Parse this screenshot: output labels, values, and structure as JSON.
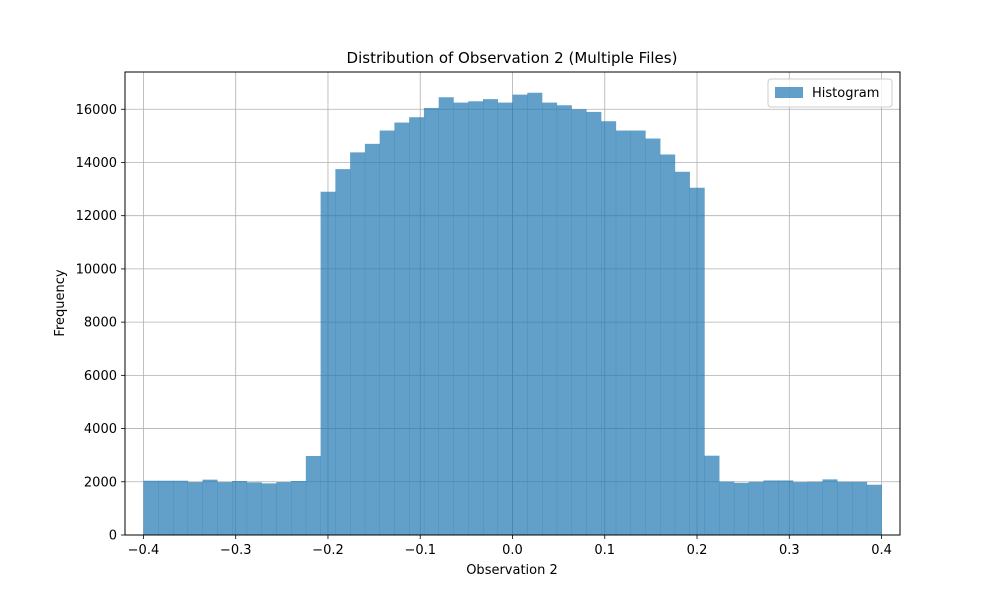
{
  "chart_data": {
    "type": "bar",
    "title": "Distribution of Observation 2 (Multiple Files)",
    "xlabel": "Observation 2",
    "ylabel": "Frequency",
    "xlim": [
      -0.42,
      0.42
    ],
    "ylim": [
      0,
      17400
    ],
    "xticks": [
      -0.4,
      -0.3,
      -0.2,
      -0.1,
      0.0,
      0.1,
      0.2,
      0.3,
      0.4
    ],
    "xtick_labels": [
      "−0.4",
      "−0.3",
      "−0.2",
      "−0.1",
      "0.0",
      "0.1",
      "0.2",
      "0.3",
      "0.4"
    ],
    "yticks": [
      0,
      2000,
      4000,
      6000,
      8000,
      10000,
      12000,
      14000,
      16000
    ],
    "ytick_labels": [
      "0",
      "2000",
      "4000",
      "6000",
      "8000",
      "10000",
      "12000",
      "14000",
      "16000"
    ],
    "grid": true,
    "legend": {
      "position": "top-right",
      "entries": [
        "Histogram"
      ]
    },
    "bar_color": "#1f77b4",
    "bar_opacity": 0.7,
    "bin_edges_start": -0.4,
    "bin_width": 0.016,
    "series": [
      {
        "name": "Histogram",
        "values": [
          2040,
          2040,
          2040,
          1990,
          2080,
          1990,
          2030,
          1980,
          1940,
          1990,
          2030,
          2970,
          12900,
          13750,
          14380,
          14700,
          15200,
          15500,
          15700,
          16050,
          16450,
          16250,
          16300,
          16380,
          16250,
          16550,
          16620,
          16250,
          16150,
          16000,
          15900,
          15550,
          15200,
          15200,
          14900,
          14300,
          13650,
          13050,
          2980,
          2010,
          1960,
          2000,
          2050,
          2050,
          1990,
          2000,
          2090,
          2000,
          2000,
          1890
        ]
      }
    ]
  }
}
